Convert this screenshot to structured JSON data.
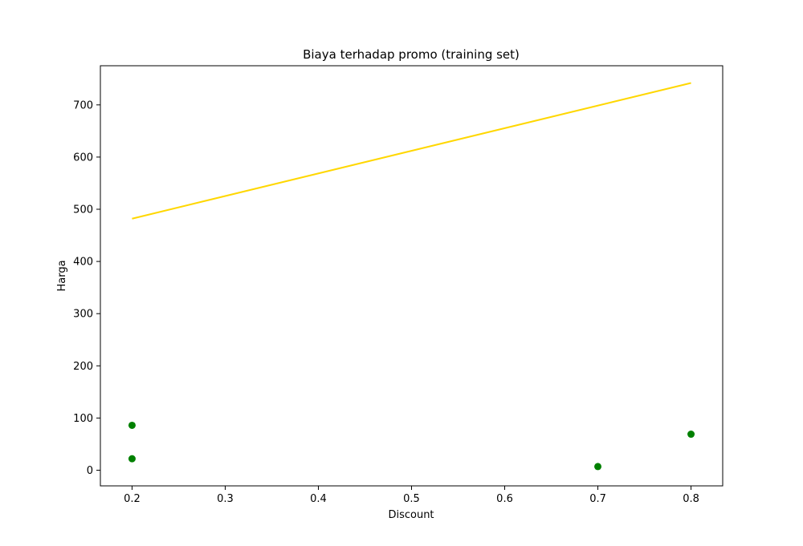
{
  "chart_data": {
    "type": "scatter",
    "title": "Biaya terhadap promo (training set)",
    "xlabel": "Discount",
    "ylabel": "Harga",
    "xlim": [
      0.166,
      0.834
    ],
    "ylim": [
      -30,
      775
    ],
    "x_ticks": [
      0.2,
      0.3,
      0.4,
      0.5,
      0.6,
      0.7,
      0.8
    ],
    "x_tick_labels": [
      "0.2",
      "0.3",
      "0.4",
      "0.5",
      "0.6",
      "0.7",
      "0.8"
    ],
    "y_ticks": [
      0,
      100,
      200,
      300,
      400,
      500,
      600,
      700
    ],
    "y_tick_labels": [
      "0",
      "100",
      "200",
      "300",
      "400",
      "500",
      "600",
      "700"
    ],
    "grid": false,
    "points": {
      "color": "#008000",
      "x": [
        0.2,
        0.2,
        0.7,
        0.8
      ],
      "y": [
        86,
        22,
        7,
        69
      ]
    },
    "line": {
      "color": "#FFD700",
      "x": [
        0.2,
        0.8
      ],
      "y": [
        482,
        742
      ]
    }
  }
}
